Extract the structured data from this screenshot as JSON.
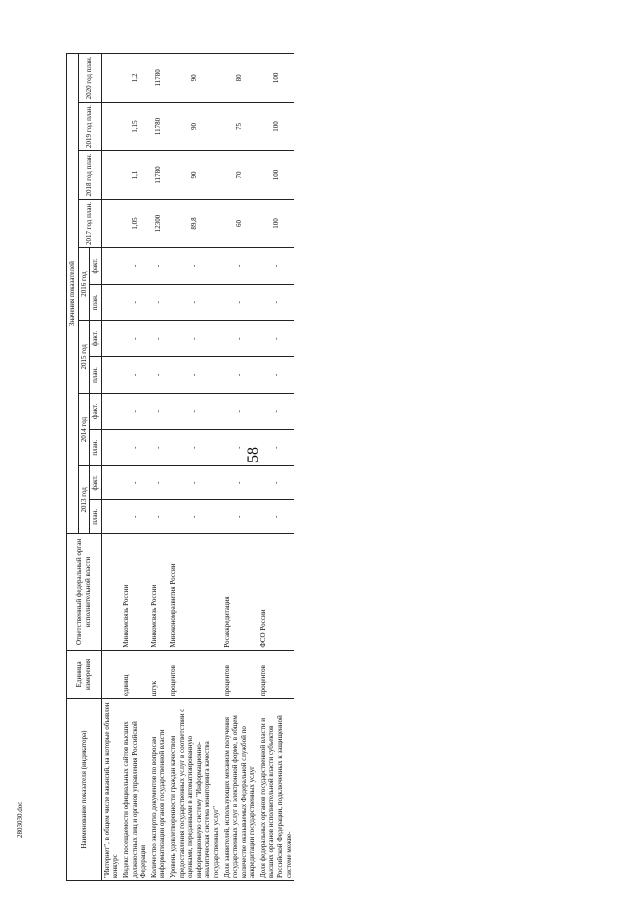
{
  "page_number": "58",
  "footer": "2803030.doc",
  "headers": {
    "name": "Наименование показателя (индикатора)",
    "unit": "Единица измерения",
    "authority": "Ответственный федеральный орган исполнительной власти",
    "values_group": "Значения показателей",
    "y2013": "2013 год",
    "y2014": "2014 год",
    "y2015": "2015 год",
    "y2016": "2016 год",
    "plan": "план.",
    "fact": "факт.",
    "y2017": "2017 год план.",
    "y2018": "2018 год план.",
    "y2019": "2019 год план.",
    "y2020": "2020 год план."
  },
  "rows": [
    {
      "name": "\"Интернет\", в общем числе вакансий, на которые объявлен конкурс",
      "unit": "",
      "authority": "",
      "values": [
        "",
        "",
        "",
        "",
        "",
        "",
        "",
        "",
        "",
        "",
        "",
        ""
      ]
    },
    {
      "name": "Индекс посещаемости официальных сайтов высших должностных лиц и органов управления Российской Федерации",
      "unit": "единиц",
      "authority": "Минкомсвязь России",
      "values": [
        "-",
        "-",
        "-",
        "-",
        "-",
        "-",
        "-",
        "-",
        "1,05",
        "1,1",
        "1,15",
        "1,2"
      ]
    },
    {
      "name": "Количество экспертиз документов по вопросам информатизации органов государственной власти",
      "unit": "штук",
      "authority": "Минкомсвязь России",
      "values": [
        "-",
        "-",
        "-",
        "-",
        "-",
        "-",
        "-",
        "-",
        "12300",
        "11780",
        "11780",
        "11780"
      ]
    },
    {
      "name": "Уровень удовлетворенности граждан качеством предоставления государственных услуг в соответствии с оценками, переданными в автоматизированную информационную систему \"Информационно-аналитическая система мониторинга качества государственных услуг\"",
      "unit": "процентов",
      "authority": "Минэкономразвития России",
      "values": [
        "-",
        "-",
        "-",
        "-",
        "-",
        "-",
        "-",
        "-",
        "89,8",
        "90",
        "90",
        "90"
      ]
    },
    {
      "name": "Доля заявителей, использующих механизм получения государственных услуг в электронной форме, в общем количестве оказываемых Федеральной службой по аккредитации государственных услуг",
      "unit": "процентов",
      "authority": "Росаккредитация",
      "values": [
        "-",
        "-",
        "-",
        "-",
        "-",
        "-",
        "-",
        "-",
        "60",
        "70",
        "75",
        "80"
      ]
    },
    {
      "name": "Доля федеральных органов государственной власти и высших органов исполнительной власти субъектов Российской Федерации, подключенных к защищенной системе межве-",
      "unit": "процентов",
      "authority": "ФСО России",
      "values": [
        "-",
        "-",
        "-",
        "-",
        "-",
        "-",
        "-",
        "-",
        "100",
        "100",
        "100",
        "100"
      ]
    }
  ]
}
